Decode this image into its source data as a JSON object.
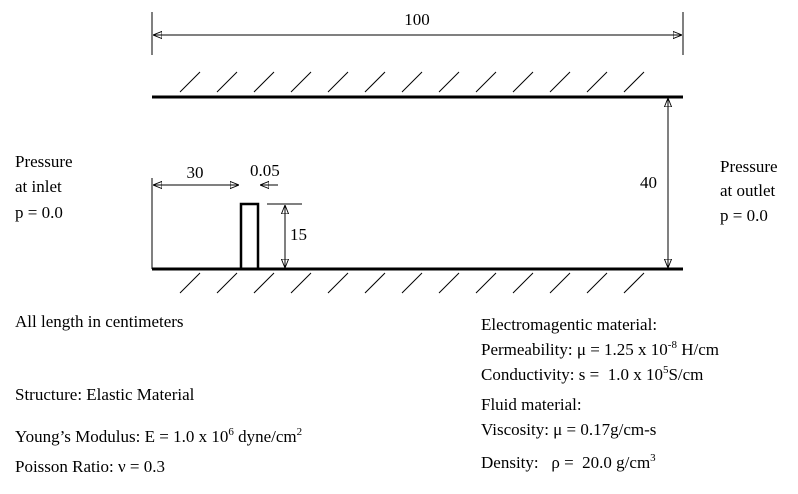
{
  "dimensions": {
    "length": "100",
    "offset": "30",
    "thickness": "0.05",
    "height": "15",
    "width": "40"
  },
  "inlet": [
    "Pressure",
    "at inlet",
    "p = 0.0"
  ],
  "outlet": [
    "Pressure",
    "at outlet",
    "p = 0.0"
  ],
  "note": "All length in centimeters",
  "structure": {
    "title": "Structure: Elastic Material",
    "youngs": [
      "Young’s Modulus: E = 1.0 x 10",
      "6",
      " dyne/cm",
      "2"
    ],
    "poisson": "Poisson Ratio: ν = 0.3"
  },
  "electromagnetic": {
    "title": "Electromagentic material:",
    "permeability": [
      "Permeability: μ = 1.25 x 10",
      "-8",
      " H/cm"
    ],
    "conductivity": [
      "Conductivity: s =  1.0 x 10",
      "5",
      "S/cm"
    ]
  },
  "fluid": {
    "title": "Fluid material:",
    "viscosity": "Viscosity: μ = 0.17g/cm-s",
    "density": [
      "Density:   ρ =  20.0 g/cm",
      "3"
    ]
  }
}
